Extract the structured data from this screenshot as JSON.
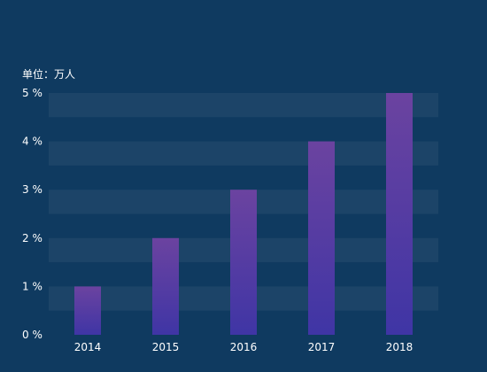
{
  "chart_data": {
    "type": "bar",
    "unit_label": "单位：万人",
    "categories": [
      "2014",
      "2015",
      "2016",
      "2017",
      "2018"
    ],
    "values": [
      1,
      2,
      3,
      4,
      5
    ],
    "y_ticks": [
      "0 %",
      "1 %",
      "2 %",
      "3 %",
      "4 %",
      "5 %"
    ],
    "ylim": [
      0,
      5
    ],
    "grid": "alternating-bands",
    "colors": {
      "background": "#0f3a60",
      "band": "#1c4468",
      "bar_top": "#6b43a0",
      "bar_bottom": "#3f35a5",
      "text": "#ffffff"
    }
  }
}
